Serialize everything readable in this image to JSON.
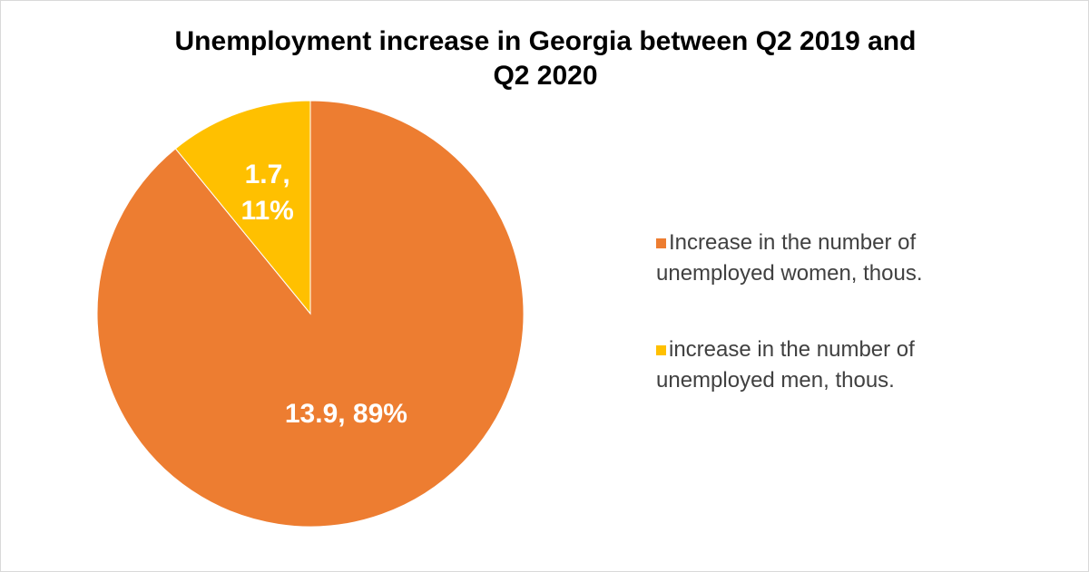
{
  "chart_data": {
    "type": "pie",
    "title": "Unemployment increase in Georgia between Q2 2019 and Q2 2020",
    "categories": [
      "Increase in the number of unemployed women, thous.",
      "increase in the number of unemployed men, thous."
    ],
    "values": [
      13.9,
      1.7
    ],
    "value_labels": [
      "13.9, 89%",
      "1.7, 11%"
    ],
    "colors": [
      "#ED7D31",
      "#FFC000"
    ],
    "legend": "right"
  }
}
